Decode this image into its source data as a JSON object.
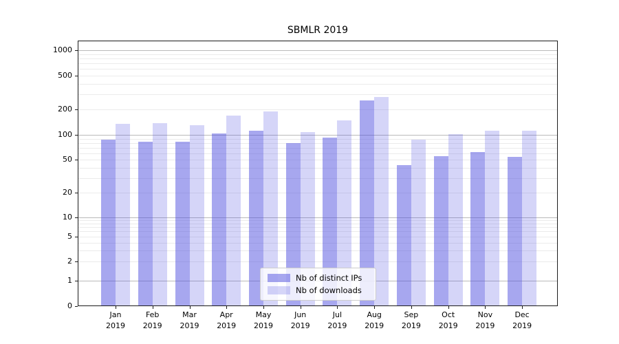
{
  "title": "SBMLR 2019",
  "legend": {
    "items": [
      {
        "label": "Nb of distinct IPs",
        "color": "rgba(80,80,224,0.50)"
      },
      {
        "label": "Nb of downloads",
        "color": "rgba(80,80,224,0.24)"
      }
    ]
  },
  "colors": {
    "bar_base": "#5050e0",
    "ips_bar_rendered": "#a9a9ef",
    "downloads_bar_rendered": "#dcdcf8",
    "major_grid": "#b9b9b9",
    "minor_grid": "#ebebeb"
  },
  "chart_data": {
    "type": "bar",
    "title": "SBMLR 2019",
    "categories": [
      "Jan 2019",
      "Feb 2019",
      "Mar 2019",
      "Apr 2019",
      "May 2019",
      "Jun 2019",
      "Jul 2019",
      "Aug 2019",
      "Sep 2019",
      "Oct 2019",
      "Nov 2019",
      "Dec 2019"
    ],
    "series": [
      {
        "name": "Nb of distinct IPs",
        "color": "rgba(80,80,224,0.50)",
        "values": [
          87,
          82,
          82,
          103,
          111,
          79,
          92,
          256,
          43,
          55,
          62,
          54
        ]
      },
      {
        "name": "Nb of downloads",
        "color": "rgba(80,80,224,0.24)",
        "values": [
          135,
          138,
          129,
          168,
          190,
          107,
          147,
          280,
          88,
          102,
          111,
          111
        ]
      }
    ],
    "xlabel": "",
    "ylabel": "",
    "yscale": "log (0 at axis bottom)",
    "yticks": [
      0,
      1,
      2,
      5,
      10,
      20,
      50,
      100,
      200,
      500,
      1000
    ],
    "minor_gridline_values": [
      2,
      3,
      4,
      5,
      6,
      7,
      8,
      9,
      20,
      30,
      40,
      50,
      60,
      70,
      80,
      90,
      200,
      300,
      400,
      500,
      600,
      700,
      800,
      900
    ],
    "major_gridline_values": [
      1,
      10,
      100,
      1000
    ],
    "ylim": [
      0,
      1200
    ],
    "grid": true,
    "legend_position": "lower center"
  }
}
